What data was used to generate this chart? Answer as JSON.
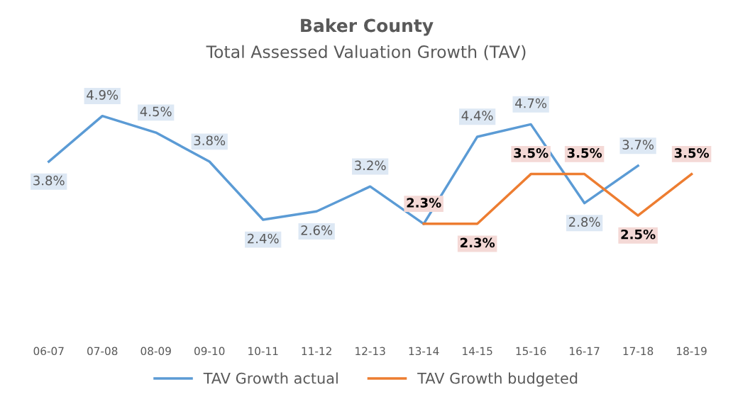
{
  "chart_data": {
    "type": "line",
    "title": "Baker County",
    "subtitle": "Total Assessed Valuation Growth (TAV)",
    "categories": [
      "06-07",
      "07-08",
      "08-09",
      "09-10",
      "10-11",
      "11-12",
      "12-13",
      "13-14",
      "14-15",
      "15-16",
      "16-17",
      "17-18",
      "18-19"
    ],
    "series": [
      {
        "name": "TAV Growth actual",
        "color": "#5b9bd5",
        "values": [
          3.8,
          4.9,
          4.5,
          3.8,
          2.4,
          2.6,
          3.2,
          2.3,
          4.4,
          4.7,
          2.8,
          3.7,
          null
        ],
        "value_labels": [
          "3.8%",
          "4.9%",
          "4.5%",
          "3.8%",
          "2.4%",
          "2.6%",
          "3.2%",
          null,
          "4.4%",
          "4.7%",
          "2.8%",
          "3.7%",
          null
        ]
      },
      {
        "name": "TAV Growth budgeted",
        "color": "#ed7d31",
        "values": [
          null,
          null,
          null,
          null,
          null,
          null,
          null,
          2.3,
          2.3,
          3.5,
          3.5,
          2.5,
          3.5
        ],
        "value_labels": [
          null,
          null,
          null,
          null,
          null,
          null,
          null,
          "2.3%",
          "2.3%",
          "3.5%",
          "3.5%",
          "2.5%",
          "3.5%"
        ]
      }
    ],
    "grid": false,
    "legend": "bottom",
    "marker": "none",
    "line_style": "solid"
  }
}
